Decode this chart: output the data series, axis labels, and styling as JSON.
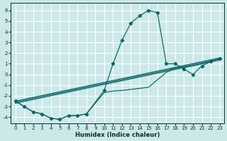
{
  "xlabel": "Humidex (Indice chaleur)",
  "background_color": "#cce8e8",
  "grid_color": "#ffffff",
  "line_color": "#006666",
  "xlim": [
    -0.5,
    23.5
  ],
  "ylim": [
    -4.6,
    6.7
  ],
  "xticks": [
    0,
    1,
    2,
    3,
    4,
    5,
    6,
    7,
    8,
    9,
    10,
    11,
    12,
    13,
    14,
    15,
    16,
    17,
    18,
    19,
    20,
    21,
    22,
    23
  ],
  "yticks": [
    -4,
    -3,
    -2,
    -1,
    0,
    1,
    2,
    3,
    4,
    5,
    6
  ],
  "main_x": [
    0,
    1,
    2,
    3,
    4,
    5,
    6,
    7,
    8,
    10,
    11,
    12,
    13,
    14,
    15,
    16,
    17,
    18,
    19,
    20,
    21,
    22,
    23
  ],
  "main_y": [
    -2.5,
    -3.0,
    -3.5,
    -3.7,
    -4.1,
    -4.2,
    -3.85,
    -3.85,
    -3.7,
    -1.5,
    1.0,
    3.2,
    4.8,
    5.5,
    6.0,
    5.8,
    1.0,
    1.0,
    0.5,
    0.0,
    0.8,
    1.2,
    1.5
  ],
  "flat_x": [
    0,
    1,
    2,
    3,
    4,
    5,
    6,
    7,
    8,
    10,
    11,
    12,
    13,
    14,
    15,
    16,
    17,
    18,
    19,
    20,
    21,
    22,
    23
  ],
  "flat_y": [
    -2.5,
    -3.0,
    -3.5,
    -3.7,
    -4.1,
    -4.2,
    -3.85,
    -3.85,
    -3.7,
    -1.7,
    -1.55,
    -1.5,
    -1.4,
    -1.3,
    -1.2,
    -0.5,
    0.2,
    0.6,
    0.7,
    0.8,
    1.0,
    1.2,
    1.5
  ],
  "line1_x": [
    0,
    23
  ],
  "line1_y": [
    -2.5,
    1.55
  ],
  "line2_x": [
    0,
    23
  ],
  "line2_y": [
    -2.6,
    1.45
  ],
  "line3_x": [
    0,
    23
  ],
  "line3_y": [
    -2.7,
    1.35
  ]
}
